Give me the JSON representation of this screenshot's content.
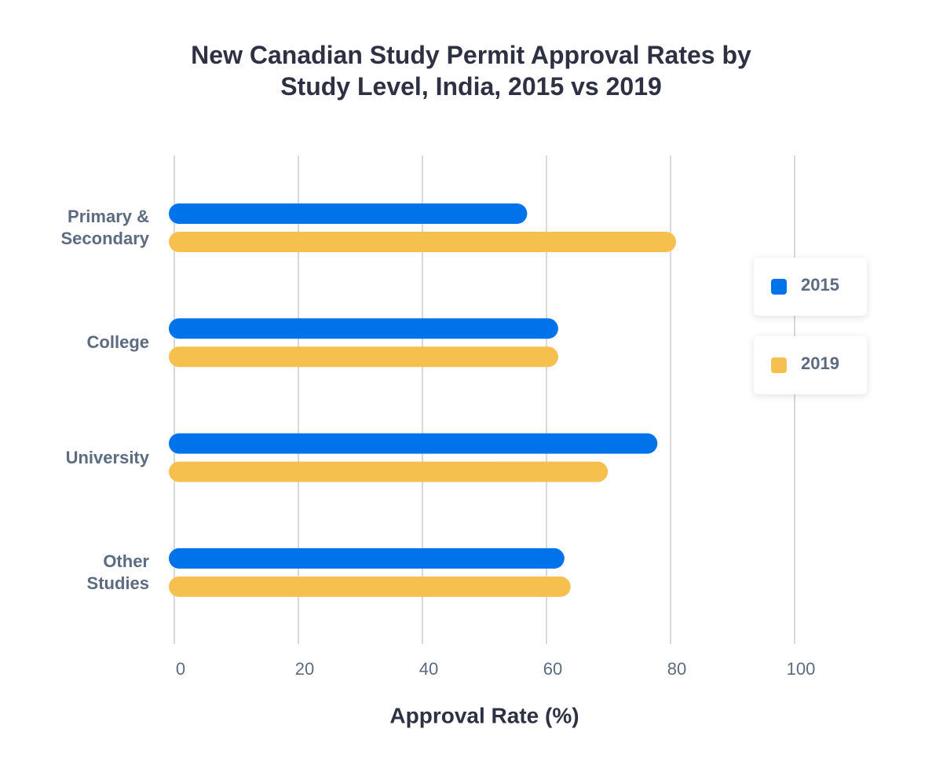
{
  "chart_data": {
    "type": "bar",
    "orientation": "horizontal",
    "title": "New Canadian Study Permit Approval Rates by Study Level, India, 2015 vs 2019",
    "x_label": "Approval Rate (%)",
    "categories": [
      "Primary & Secondary",
      "College",
      "University",
      "Other Studies"
    ],
    "series": [
      {
        "name": "2015",
        "color": "#0073ea",
        "values": [
          56,
          61,
          77,
          62
        ]
      },
      {
        "name": "2019",
        "color": "#f5c04e",
        "values": [
          80,
          61,
          69,
          63
        ]
      }
    ],
    "xlim": [
      0,
      100
    ],
    "xticks": [
      0,
      20,
      40,
      60,
      80,
      100
    ],
    "grid": true,
    "legend": "right"
  }
}
